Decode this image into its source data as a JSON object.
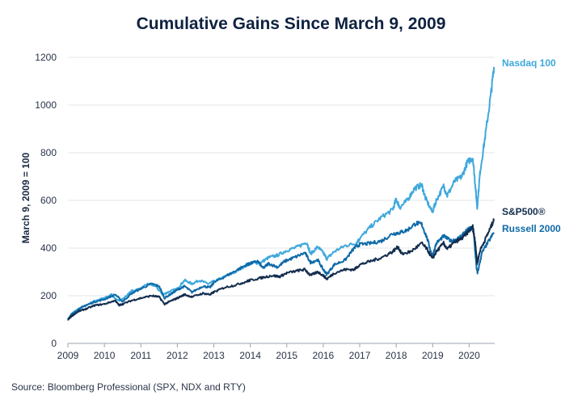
{
  "chart_title": "Cumulative Gains Since March 9, 2009",
  "source_note": "Source: Bloomberg Professional (SPX, NDX and RTY)",
  "chart_data": {
    "type": "line",
    "title": "Cumulative Gains Since March 9, 2009",
    "xlabel": "",
    "ylabel": "March 9, 2009 = 100",
    "xlim": [
      2009,
      2020.7
    ],
    "ylim": [
      0,
      1200
    ],
    "x_ticks": [
      2009,
      2010,
      2011,
      2012,
      2013,
      2014,
      2015,
      2016,
      2017,
      2018,
      2019,
      2020
    ],
    "y_ticks": [
      0,
      200,
      400,
      600,
      800,
      1000,
      1200
    ],
    "grid": "horizontal",
    "legend": "inline labels at line ends (right)",
    "series": [
      {
        "name": "Nasdaq 100",
        "color": "#3ea8dc",
        "points": [
          [
            2009.0,
            100
          ],
          [
            2009.1,
            125
          ],
          [
            2009.3,
            145
          ],
          [
            2009.5,
            160
          ],
          [
            2009.75,
            180
          ],
          [
            2010.0,
            190
          ],
          [
            2010.2,
            205
          ],
          [
            2010.35,
            180
          ],
          [
            2010.5,
            185
          ],
          [
            2010.75,
            220
          ],
          [
            2011.0,
            230
          ],
          [
            2011.2,
            250
          ],
          [
            2011.4,
            240
          ],
          [
            2011.6,
            205
          ],
          [
            2011.75,
            215
          ],
          [
            2012.0,
            230
          ],
          [
            2012.2,
            265
          ],
          [
            2012.4,
            250
          ],
          [
            2012.6,
            265
          ],
          [
            2012.85,
            250
          ],
          [
            2013.0,
            260
          ],
          [
            2013.3,
            280
          ],
          [
            2013.6,
            300
          ],
          [
            2013.9,
            330
          ],
          [
            2014.0,
            335
          ],
          [
            2014.3,
            340
          ],
          [
            2014.5,
            360
          ],
          [
            2014.75,
            370
          ],
          [
            2015.0,
            390
          ],
          [
            2015.3,
            405
          ],
          [
            2015.55,
            425
          ],
          [
            2015.65,
            375
          ],
          [
            2015.85,
            405
          ],
          [
            2016.0,
            380
          ],
          [
            2016.1,
            355
          ],
          [
            2016.3,
            385
          ],
          [
            2016.6,
            410
          ],
          [
            2016.9,
            420
          ],
          [
            2017.0,
            440
          ],
          [
            2017.3,
            490
          ],
          [
            2017.6,
            530
          ],
          [
            2017.9,
            560
          ],
          [
            2018.0,
            605
          ],
          [
            2018.1,
            570
          ],
          [
            2018.3,
            600
          ],
          [
            2018.5,
            650
          ],
          [
            2018.7,
            665
          ],
          [
            2018.8,
            610
          ],
          [
            2018.99,
            550
          ],
          [
            2019.1,
            600
          ],
          [
            2019.3,
            660
          ],
          [
            2019.4,
            620
          ],
          [
            2019.6,
            680
          ],
          [
            2019.8,
            700
          ],
          [
            2019.95,
            760
          ],
          [
            2020.1,
            780
          ],
          [
            2020.17,
            660
          ],
          [
            2020.22,
            570
          ],
          [
            2020.3,
            720
          ],
          [
            2020.45,
            880
          ],
          [
            2020.6,
            1050
          ],
          [
            2020.68,
            1160
          ]
        ]
      },
      {
        "name": "Russell 2000",
        "color": "#0e6aa8",
        "points": [
          [
            2009.0,
            100
          ],
          [
            2009.1,
            120
          ],
          [
            2009.3,
            145
          ],
          [
            2009.5,
            160
          ],
          [
            2009.75,
            175
          ],
          [
            2010.0,
            185
          ],
          [
            2010.3,
            205
          ],
          [
            2010.5,
            175
          ],
          [
            2010.75,
            210
          ],
          [
            2011.0,
            230
          ],
          [
            2011.3,
            250
          ],
          [
            2011.5,
            240
          ],
          [
            2011.65,
            190
          ],
          [
            2011.85,
            210
          ],
          [
            2012.0,
            225
          ],
          [
            2012.2,
            240
          ],
          [
            2012.4,
            215
          ],
          [
            2012.7,
            240
          ],
          [
            2012.9,
            235
          ],
          [
            2013.0,
            255
          ],
          [
            2013.3,
            280
          ],
          [
            2013.6,
            305
          ],
          [
            2013.9,
            330
          ],
          [
            2014.0,
            335
          ],
          [
            2014.2,
            345
          ],
          [
            2014.35,
            315
          ],
          [
            2014.5,
            335
          ],
          [
            2014.75,
            320
          ],
          [
            2014.95,
            345
          ],
          [
            2015.2,
            360
          ],
          [
            2015.5,
            380
          ],
          [
            2015.65,
            340
          ],
          [
            2015.85,
            350
          ],
          [
            2016.0,
            310
          ],
          [
            2016.1,
            290
          ],
          [
            2016.3,
            330
          ],
          [
            2016.6,
            350
          ],
          [
            2016.85,
            400
          ],
          [
            2017.0,
            415
          ],
          [
            2017.3,
            420
          ],
          [
            2017.6,
            430
          ],
          [
            2017.9,
            460
          ],
          [
            2018.1,
            465
          ],
          [
            2018.3,
            475
          ],
          [
            2018.55,
            505
          ],
          [
            2018.7,
            500
          ],
          [
            2018.85,
            440
          ],
          [
            2018.99,
            365
          ],
          [
            2019.1,
            420
          ],
          [
            2019.3,
            450
          ],
          [
            2019.5,
            430
          ],
          [
            2019.7,
            440
          ],
          [
            2019.9,
            470
          ],
          [
            2020.05,
            485
          ],
          [
            2020.12,
            470
          ],
          [
            2020.2,
            320
          ],
          [
            2020.23,
            295
          ],
          [
            2020.35,
            380
          ],
          [
            2020.5,
            420
          ],
          [
            2020.68,
            465
          ]
        ]
      },
      {
        "name": "S&P500®",
        "color": "#132d4e",
        "points": [
          [
            2009.0,
            100
          ],
          [
            2009.1,
            115
          ],
          [
            2009.3,
            135
          ],
          [
            2009.5,
            145
          ],
          [
            2009.75,
            160
          ],
          [
            2010.0,
            165
          ],
          [
            2010.3,
            180
          ],
          [
            2010.4,
            160
          ],
          [
            2010.5,
            165
          ],
          [
            2010.75,
            180
          ],
          [
            2011.0,
            190
          ],
          [
            2011.3,
            200
          ],
          [
            2011.5,
            195
          ],
          [
            2011.65,
            165
          ],
          [
            2011.85,
            180
          ],
          [
            2012.0,
            190
          ],
          [
            2012.2,
            205
          ],
          [
            2012.4,
            195
          ],
          [
            2012.7,
            210
          ],
          [
            2012.9,
            205
          ],
          [
            2013.0,
            215
          ],
          [
            2013.3,
            235
          ],
          [
            2013.6,
            245
          ],
          [
            2013.9,
            260
          ],
          [
            2014.0,
            265
          ],
          [
            2014.3,
            275
          ],
          [
            2014.6,
            285
          ],
          [
            2014.8,
            280
          ],
          [
            2015.0,
            295
          ],
          [
            2015.3,
            305
          ],
          [
            2015.5,
            310
          ],
          [
            2015.65,
            285
          ],
          [
            2015.85,
            300
          ],
          [
            2016.0,
            285
          ],
          [
            2016.1,
            270
          ],
          [
            2016.3,
            295
          ],
          [
            2016.6,
            310
          ],
          [
            2016.85,
            310
          ],
          [
            2017.0,
            330
          ],
          [
            2017.3,
            345
          ],
          [
            2017.6,
            360
          ],
          [
            2017.9,
            385
          ],
          [
            2018.05,
            405
          ],
          [
            2018.15,
            375
          ],
          [
            2018.4,
            385
          ],
          [
            2018.7,
            420
          ],
          [
            2018.85,
            395
          ],
          [
            2018.99,
            355
          ],
          [
            2019.1,
            385
          ],
          [
            2019.3,
            420
          ],
          [
            2019.4,
            395
          ],
          [
            2019.6,
            425
          ],
          [
            2019.8,
            440
          ],
          [
            2019.95,
            465
          ],
          [
            2020.1,
            490
          ],
          [
            2020.17,
            420
          ],
          [
            2020.22,
            335
          ],
          [
            2020.3,
            390
          ],
          [
            2020.45,
            440
          ],
          [
            2020.6,
            490
          ],
          [
            2020.68,
            520
          ]
        ]
      }
    ]
  }
}
